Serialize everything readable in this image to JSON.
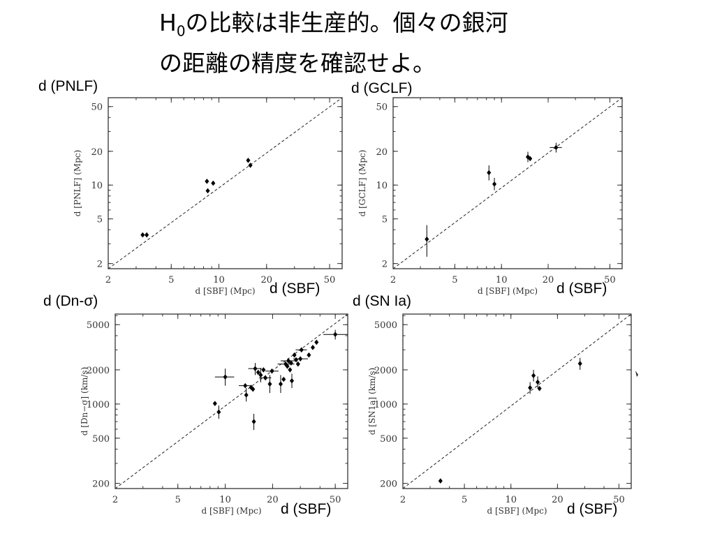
{
  "slide_title_main": "H",
  "slide_title_sub": "0",
  "slide_title_line1_rest": "の比較は非生産的。個々の銀河",
  "slide_title_line2": "の距離の精度を確認せよ。",
  "chart_data": [
    {
      "type": "scatter",
      "ylabel_slide": "d (PNLF)",
      "xlabel_slide": "d (SBF)",
      "xlabel_axis": "d [SBF]   (Mpc)",
      "ylabel_axis": "d [PNLF] (Mpc)",
      "xlog": true,
      "ylog": true,
      "xlim": [
        2,
        60
      ],
      "ylim": [
        1.8,
        60
      ],
      "xticks": [
        2,
        5,
        10,
        20,
        50
      ],
      "yticks": [
        2,
        5,
        10,
        20,
        50
      ],
      "points": [
        {
          "x": 3.3,
          "y": 3.6
        },
        {
          "x": 3.5,
          "y": 3.6
        },
        {
          "x": 8.4,
          "y": 10.8
        },
        {
          "x": 8.5,
          "y": 8.9
        },
        {
          "x": 9.2,
          "y": 10.4
        },
        {
          "x": 15.3,
          "y": 16.6
        },
        {
          "x": 15.8,
          "y": 15.0
        }
      ]
    },
    {
      "type": "scatter",
      "ylabel_slide": "d (GCLF)",
      "xlabel_slide": "d (SBF)",
      "xlabel_axis": "d [SBF]   (Mpc)",
      "ylabel_axis": "d [GCLF] (Mpc)",
      "xlog": true,
      "ylog": true,
      "xlim": [
        2,
        60
      ],
      "ylim": [
        1.8,
        60
      ],
      "xticks": [
        2,
        5,
        10,
        20,
        50
      ],
      "yticks": [
        2,
        5,
        10,
        20,
        50
      ],
      "points": [
        {
          "x": 3.3,
          "y": 3.3,
          "yerr": [
            2.3,
            4.4
          ]
        },
        {
          "x": 8.3,
          "y": 12.9,
          "yerr": [
            11.0,
            15.0
          ]
        },
        {
          "x": 9.0,
          "y": 10.2,
          "yerr": [
            9.0,
            11.6
          ]
        },
        {
          "x": 14.8,
          "y": 17.8,
          "yerr": [
            16.0,
            19.8
          ]
        },
        {
          "x": 15.3,
          "y": 17.2
        },
        {
          "x": 22.5,
          "y": 21.6,
          "xerr": [
            20.5,
            24.5
          ],
          "yerr": [
            19.5,
            23.8
          ]
        }
      ]
    },
    {
      "type": "scatter",
      "ylabel_slide": "d (Dn-σ)",
      "xlabel_slide": "d (SBF)",
      "xlabel_axis": "d [SBF]   (Mpc)",
      "ylabel_axis": "d [Dn−σ]  (km/s)",
      "xlog": true,
      "ylog": true,
      "xlim": [
        2,
        60
      ],
      "ylim": [
        180,
        6200
      ],
      "xticks": [
        2,
        5,
        10,
        20,
        50
      ],
      "yticks": [
        200,
        500,
        1000,
        2000,
        5000
      ],
      "points": [
        {
          "x": 8.6,
          "y": 1010
        },
        {
          "x": 9.1,
          "y": 850,
          "yerr": [
            740,
            970
          ]
        },
        {
          "x": 10.0,
          "y": 1730,
          "xerr": [
            8.6,
            11.4
          ],
          "yerr": [
            1450,
            2050
          ]
        },
        {
          "x": 13.4,
          "y": 1450,
          "xerr": [
            12.2,
            14.6
          ]
        },
        {
          "x": 13.6,
          "y": 1200,
          "yerr": [
            1050,
            1380
          ]
        },
        {
          "x": 14.6,
          "y": 1400
        },
        {
          "x": 15.0,
          "y": 1350
        },
        {
          "x": 15.2,
          "y": 700,
          "yerr": [
            590,
            820
          ]
        },
        {
          "x": 15.5,
          "y": 2050,
          "xerr": [
            14.0,
            17.0
          ],
          "yerr": [
            1800,
            2300
          ]
        },
        {
          "x": 16.2,
          "y": 1900
        },
        {
          "x": 16.8,
          "y": 1800,
          "yerr": [
            1550,
            2080
          ]
        },
        {
          "x": 17.5,
          "y": 2000
        },
        {
          "x": 18.0,
          "y": 1700,
          "xerr": [
            16.4,
            19.6
          ]
        },
        {
          "x": 19.2,
          "y": 1500,
          "yerr": [
            1250,
            1800
          ]
        },
        {
          "x": 19.8,
          "y": 1950,
          "xerr": [
            18.0,
            21.8
          ]
        },
        {
          "x": 22.5,
          "y": 1500,
          "yerr": [
            1250,
            1800
          ]
        },
        {
          "x": 23.5,
          "y": 1650
        },
        {
          "x": 24.2,
          "y": 2250,
          "xerr": [
            21.5,
            27.5
          ]
        },
        {
          "x": 24.8,
          "y": 2150
        },
        {
          "x": 25.2,
          "y": 2400,
          "xerr": [
            22.5,
            28.0
          ]
        },
        {
          "x": 25.8,
          "y": 2000
        },
        {
          "x": 26.2,
          "y": 2300
        },
        {
          "x": 26.5,
          "y": 1600,
          "yerr": [
            1380,
            1850
          ]
        },
        {
          "x": 27.5,
          "y": 2700
        },
        {
          "x": 28.2,
          "y": 2450
        },
        {
          "x": 29.0,
          "y": 2250
        },
        {
          "x": 30.0,
          "y": 2500,
          "xerr": [
            27.0,
            33.5
          ]
        },
        {
          "x": 30.5,
          "y": 3000,
          "xerr": [
            28.0,
            33.0
          ]
        },
        {
          "x": 34.0,
          "y": 2700
        },
        {
          "x": 36.0,
          "y": 3150
        },
        {
          "x": 38.0,
          "y": 3500
        },
        {
          "x": 50.0,
          "y": 4100,
          "xerr": [
            42.0,
            60.0
          ],
          "yerr": [
            3700,
            4500
          ]
        }
      ]
    },
    {
      "type": "scatter",
      "ylabel_slide": "d (SN Ia)",
      "xlabel_slide": "d (SBF)",
      "xlabel_axis": "d [SBF]   (Mpc)",
      "ylabel_axis": "d [SN1a]  (km/s)",
      "xlog": true,
      "ylog": true,
      "xlim": [
        2,
        60
      ],
      "ylim": [
        180,
        6200
      ],
      "xticks": [
        2,
        5,
        10,
        20,
        50
      ],
      "yticks": [
        200,
        500,
        1000,
        2000,
        5000
      ],
      "points": [
        {
          "x": 3.5,
          "y": 210
        },
        {
          "x": 13.3,
          "y": 1390,
          "yerr": [
            1230,
            1560
          ]
        },
        {
          "x": 14.0,
          "y": 1780,
          "yerr": [
            1580,
            2000
          ]
        },
        {
          "x": 14.9,
          "y": 1560,
          "yerr": [
            1390,
            1750
          ]
        },
        {
          "x": 15.3,
          "y": 1370
        },
        {
          "x": 28.0,
          "y": 2270,
          "yerr": [
            2000,
            2550
          ]
        }
      ]
    }
  ]
}
